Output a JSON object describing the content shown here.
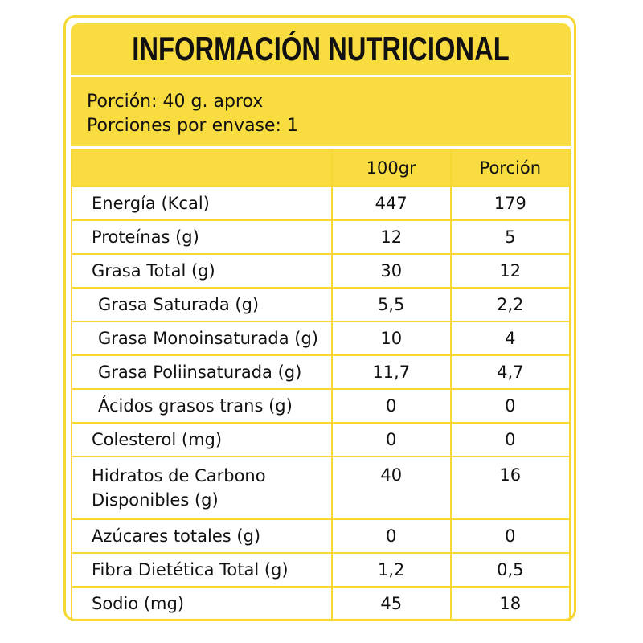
{
  "header": {
    "title": "INFORMACIÓN NUTRICIONAL"
  },
  "serving": {
    "size": "Porción: 40 g. aprox",
    "per_package": "Porciones por envase: 1"
  },
  "table": {
    "columns": [
      "100gr",
      "Porción"
    ],
    "rows": [
      [
        "Energía (Kcal)",
        "447",
        "179"
      ],
      [
        "Proteínas (g)",
        "12",
        "5"
      ],
      [
        "Grasa Total (g)",
        "30",
        "12"
      ],
      [
        "Grasa Saturada (g)",
        "5,5",
        "2,2"
      ],
      [
        "Grasa Monoinsaturada (g)",
        "10",
        "4"
      ],
      [
        "Grasa Poliinsaturada (g)",
        "11,7",
        "4,7"
      ],
      [
        "Ácidos grasos trans (g)",
        "0",
        "0"
      ],
      [
        "Colesterol (mg)",
        "0",
        "0"
      ],
      [
        "Hidratos de Carbono Disponibles (g)",
        "40",
        "16"
      ],
      [
        "Azúcares totales (g)",
        "0",
        "0"
      ],
      [
        "Fibra Dietética Total (g)",
        "1,2",
        "0,5"
      ],
      [
        "Sodio (mg)",
        "45",
        "18"
      ]
    ]
  }
}
